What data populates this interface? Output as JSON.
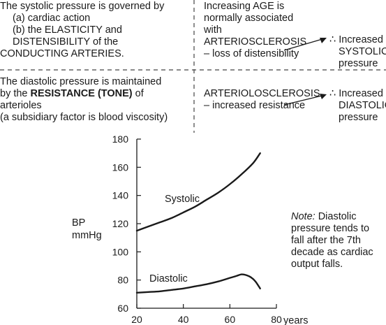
{
  "top_table": {
    "row1_left": {
      "line1": "The systolic pressure is governed by",
      "line2": "(a) cardiac action",
      "line3": "(b) the ELASTICITY and",
      "line4": "DISTENSIBILITY of the",
      "line5": "CONDUCTING ARTERIES."
    },
    "row1_middle": {
      "line1": "Increasing AGE is",
      "line2": "normally associated",
      "line3": "with",
      "line4": "ARTERIOSCLEROSIS",
      "line5": "– loss of distensibility"
    },
    "row1_right": {
      "line1": "∴ Increased",
      "line2": "SYSTOLIC",
      "line3": "pressure"
    },
    "row2_left": {
      "line1_pre": "The diastolic pressure is maintained",
      "line2_pre": "by the ",
      "line2_bold": "RESISTANCE (TONE)",
      "line2_post": " of",
      "line3": "arterioles",
      "line4": "(a subsidiary factor is blood viscosity)"
    },
    "row2_middle": {
      "line1": "ARTERIOLOSCLEROSIS",
      "line2": "– increased resistance"
    },
    "row2_right": {
      "line1": "∴ Increased",
      "line2": "DIASTOLIC",
      "line3": "pressure"
    }
  },
  "note": {
    "label": "Note:",
    "line1": " Diastolic",
    "line2": "pressure tends to",
    "line3": "fall after the 7th",
    "line4": "decade as cardiac",
    "line5": "output falls."
  },
  "chart_data": {
    "type": "line",
    "xlabel": "years",
    "ylabel_line1": "BP",
    "ylabel_line2": "mmHg",
    "xlim": [
      20,
      80
    ],
    "ylim": [
      60,
      180
    ],
    "x_ticks": [
      20,
      40,
      60,
      80
    ],
    "y_ticks": [
      60,
      80,
      100,
      120,
      140,
      160,
      180
    ],
    "grid": false,
    "series": [
      {
        "name": "Systolic",
        "x": [
          20,
          25,
          30,
          35,
          40,
          45,
          50,
          55,
          60,
          65,
          70,
          73
        ],
        "y": [
          115,
          118,
          121,
          124,
          128,
          132,
          137,
          142,
          148,
          155,
          163,
          170
        ]
      },
      {
        "name": "Diastolic",
        "x": [
          20,
          25,
          30,
          35,
          40,
          45,
          50,
          55,
          60,
          63,
          65,
          67,
          69,
          71,
          73
        ],
        "y": [
          71,
          71.5,
          72,
          73,
          74,
          75.5,
          77,
          79,
          81.5,
          83,
          84,
          83.5,
          82,
          79,
          74
        ]
      }
    ]
  }
}
